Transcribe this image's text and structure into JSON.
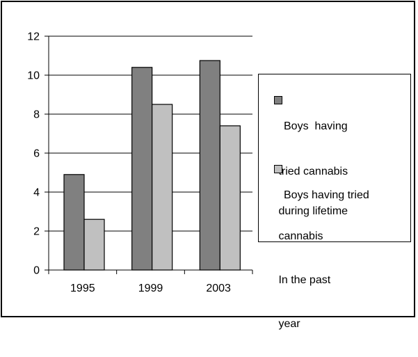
{
  "chart_data": {
    "type": "bar",
    "categories": [
      "1995",
      "1999",
      "2003"
    ],
    "series": [
      {
        "name": "Boys having tried cannabis during lifetime",
        "legend_lines": [
          "Boys  having",
          " tried cannabis",
          " during lifetime"
        ],
        "values": [
          4.9,
          10.4,
          10.75
        ],
        "color": "#808080"
      },
      {
        "name": "Boys having tried cannabis In the past year",
        "legend_lines": [
          "Boys having tried",
          " cannabis",
          " In the past",
          " year"
        ],
        "values": [
          2.6,
          8.5,
          7.4
        ],
        "color": "#c0c0c0"
      }
    ],
    "yticks": [
      "0",
      "2",
      "4",
      "6",
      "8",
      "10",
      "12"
    ],
    "ylim": [
      0,
      12
    ],
    "grid": true,
    "legend_position": "right",
    "title": "",
    "xlabel": "",
    "ylabel": ""
  }
}
